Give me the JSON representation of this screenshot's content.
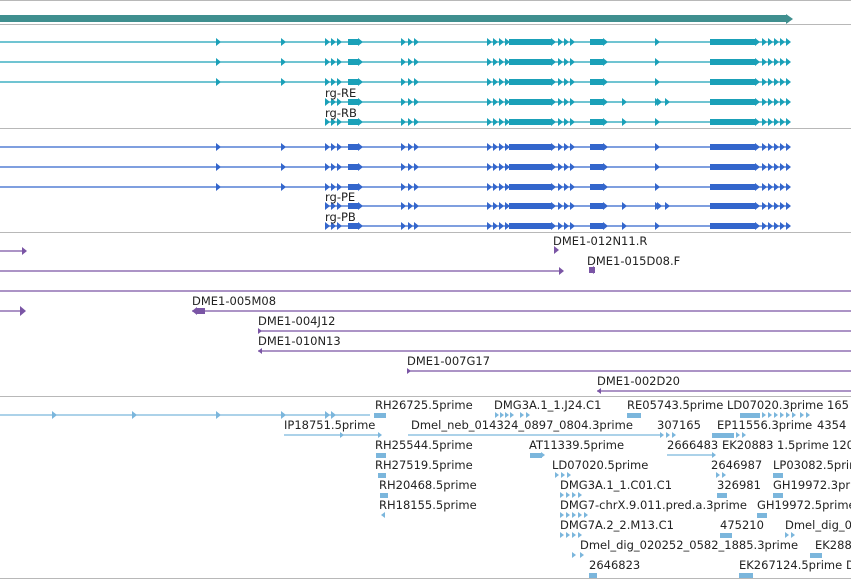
{
  "colors": {
    "gene": "#3f8f8f",
    "transcript": "#1aa0b8",
    "protein": "#3366cc",
    "clone": "#7a55a5",
    "est": "#7bb6dc"
  },
  "transcripts": [
    "rg-RE",
    "rg-RB"
  ],
  "proteins": [
    "rg-PE",
    "rg-PB"
  ],
  "clones": [
    "DME1-012N11.R",
    "DME1-015D08.F",
    "DME1-005M08",
    "DME1-004J12",
    "DME1-010N13",
    "DME1-007G17",
    "DME1-002D20"
  ],
  "ests": [
    "RH26725.5prime",
    "DMG3A.1_1.J24.C1",
    "RE05743.5prime",
    "LD07020.3prime",
    "165",
    "IP18751.5prime",
    "Dmel_neb_014324_0897_0804.3prime",
    "307165",
    "EP11556.3prime",
    "4354",
    "RH25544.5prime",
    "AT11339.5prime",
    "2666483",
    "EK20883",
    "1.5prime",
    "120",
    "RH27519.5prime",
    "LD07020.5prime",
    "2646987",
    "LP03082.5prime",
    "RH20468.5prime",
    "DMG3A.1_1.C01.C1",
    "326981",
    "GH19972.3prim",
    "RH18155.5prime",
    "DMG7-chrX.9.011.pred.a.3prime",
    "GH19972.5prime",
    "DMG7A.2_2.M13.C1",
    "475210",
    "Dmel_dig_0",
    "Dmel_dig_020252_0582_1885.3prime",
    "EK288",
    "2646823",
    "EK267124.5prime",
    "D"
  ]
}
